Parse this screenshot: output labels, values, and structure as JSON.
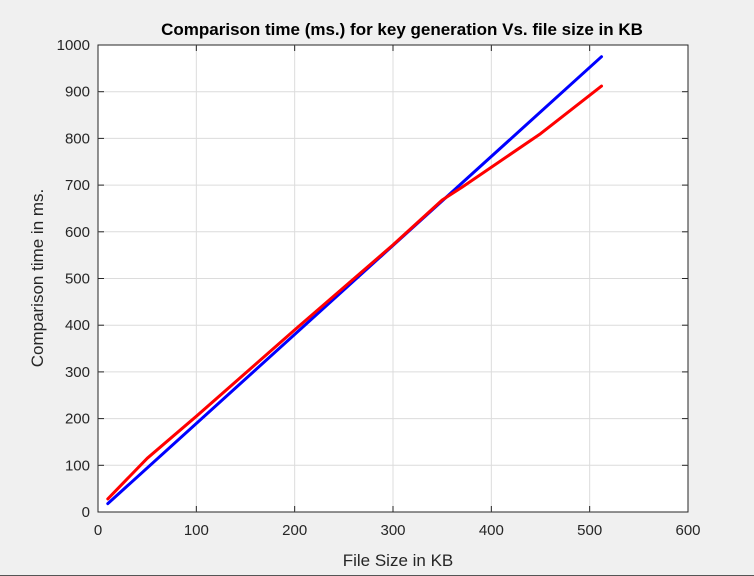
{
  "chart_data": {
    "type": "line",
    "title": "Comparison time (ms.) for key generation Vs. file size in KB",
    "xlabel": "File Size in KB",
    "ylabel": "Comparison time in ms.",
    "xlim": [
      0,
      600
    ],
    "ylim": [
      0,
      1000
    ],
    "xticks": [
      0,
      100,
      200,
      300,
      400,
      500,
      600
    ],
    "yticks": [
      0,
      100,
      200,
      300,
      400,
      500,
      600,
      700,
      800,
      900,
      1000
    ],
    "grid": true,
    "series": [
      {
        "color": "#0000ff",
        "x": [
          10,
          512
        ],
        "y": [
          18,
          975
        ]
      },
      {
        "color": "#ff0000",
        "x": [
          10,
          50,
          100,
          200,
          300,
          350,
          370,
          450,
          512
        ],
        "y": [
          28,
          115,
          205,
          390,
          572,
          668,
          695,
          810,
          912
        ]
      }
    ]
  }
}
